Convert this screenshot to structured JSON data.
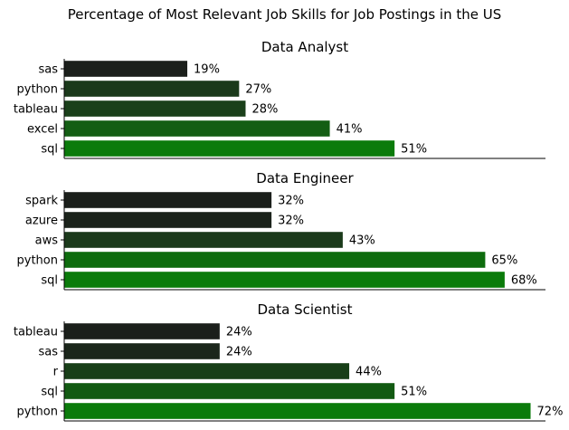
{
  "figure_title": "Percentage of Most Relevant Job Skills for Job Postings in the US",
  "chart_data": [
    {
      "type": "bar",
      "orientation": "horizontal",
      "title": "Data Analyst",
      "categories": [
        "sas",
        "python",
        "tableau",
        "excel",
        "sql"
      ],
      "values": [
        19,
        27,
        28,
        41,
        51
      ],
      "value_labels": [
        "19%",
        "27%",
        "28%",
        "41%",
        "51%"
      ],
      "xlim": [
        0,
        100
      ],
      "xaxis_visible": false,
      "colors": [
        "#1b1f1b",
        "#1b3a1b",
        "#1a401a",
        "#145e14",
        "#0b7b0b"
      ]
    },
    {
      "type": "bar",
      "orientation": "horizontal",
      "title": "Data Engineer",
      "categories": [
        "spark",
        "azure",
        "aws",
        "python",
        "sql"
      ],
      "values": [
        32,
        32,
        43,
        65,
        68
      ],
      "value_labels": [
        "32%",
        "32%",
        "43%",
        "65%",
        "68%"
      ],
      "xlim": [
        0,
        100
      ],
      "xaxis_visible": false,
      "colors": [
        "#1b1f1b",
        "#1b231b",
        "#1b3a1b",
        "#0e6c0e",
        "#0b7b0b"
      ]
    },
    {
      "type": "bar",
      "orientation": "horizontal",
      "title": "Data Scientist",
      "categories": [
        "tableau",
        "sas",
        "r",
        "sql",
        "python"
      ],
      "values": [
        24,
        24,
        44,
        51,
        72
      ],
      "value_labels": [
        "24%",
        "24%",
        "44%",
        "51%",
        "72%"
      ],
      "xlim": [
        0,
        100
      ],
      "xaxis_visible": false,
      "colors": [
        "#1b1f1b",
        "#1b261b",
        "#183f18",
        "#125a12",
        "#0b7b0b"
      ]
    }
  ]
}
